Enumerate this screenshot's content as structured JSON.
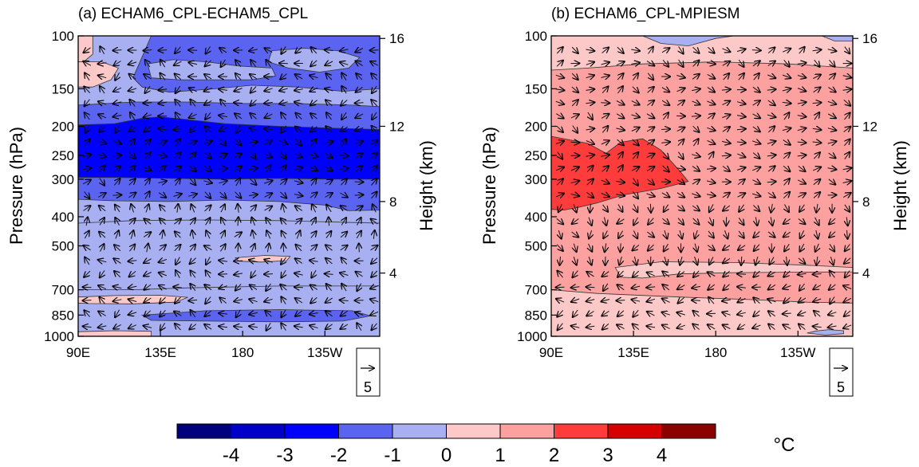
{
  "chart_data": [
    {
      "type": "heatmap",
      "title": "(a) ECHAM6_CPL-ECHAM5_CPL",
      "ylabel": "Pressure (hPa)",
      "y2label": "Height (km)",
      "x_ticks": [
        "90E",
        "135E",
        "180",
        "135W"
      ],
      "x_tick_degrees": [
        90,
        135,
        180,
        225
      ],
      "xlim_degrees": [
        90,
        255
      ],
      "y_ticks": [
        100,
        150,
        200,
        250,
        300,
        400,
        500,
        700,
        850,
        1000
      ],
      "y_scale": "log",
      "ylim": [
        1000,
        100
      ],
      "y2_ticks": [
        4,
        8,
        12,
        16
      ],
      "y2_tick_pressure": [
        616,
        356,
        200,
        102
      ],
      "reference_vector_label": "5",
      "regions": [
        {
          "name": "bg",
          "value": -0.5,
          "points": []
        },
        {
          "name": "top-left-warm",
          "value": 0.5,
          "points": [
            [
              90,
              100
            ],
            [
              98,
              100
            ],
            [
              98,
              115
            ],
            [
              93,
              122
            ],
            [
              90,
              122
            ]
          ]
        },
        {
          "name": "left-warm-140",
          "value": 0.5,
          "points": [
            [
              90,
              122
            ],
            [
              103,
              122
            ],
            [
              112,
              128
            ],
            [
              108,
              140
            ],
            [
              98,
              148
            ],
            [
              90,
              148
            ]
          ]
        },
        {
          "name": "blob-130",
          "value": -1.5,
          "points": [
            [
              130,
              100
            ],
            [
              255,
              100
            ],
            [
              255,
              150
            ],
            [
              235,
              153
            ],
            [
              210,
              148
            ],
            [
              185,
              146
            ],
            [
              165,
              150
            ],
            [
              140,
              154
            ],
            [
              125,
              148
            ],
            [
              120,
              138
            ]
          ]
        },
        {
          "name": "inner-top-right",
          "value": -0.5,
          "points": [
            [
              196,
              112
            ],
            [
              214,
              110
            ],
            [
              232,
              112
            ],
            [
              244,
              118
            ],
            [
              238,
              128
            ],
            [
              222,
              132
            ],
            [
              205,
              128
            ],
            [
              194,
              122
            ]
          ]
        },
        {
          "name": "light-upper",
          "value": -0.5,
          "points": [
            [
              128,
              124
            ],
            [
              142,
              120
            ],
            [
              160,
              122
            ],
            [
              178,
              126
            ],
            [
              196,
              128
            ],
            [
              198,
              136
            ],
            [
              185,
              140
            ],
            [
              165,
              140
            ],
            [
              145,
              140
            ],
            [
              130,
              138
            ]
          ]
        },
        {
          "name": "band-lower-upper",
          "value": -1.5,
          "points": [
            [
              90,
              170
            ],
            [
              120,
              166
            ],
            [
              150,
              166
            ],
            [
              180,
              168
            ],
            [
              210,
              168
            ],
            [
              240,
              170
            ],
            [
              255,
              172
            ],
            [
              255,
              380
            ],
            [
              238,
              382
            ],
            [
              225,
              366
            ],
            [
              200,
              356
            ],
            [
              170,
              352
            ],
            [
              140,
              356
            ],
            [
              110,
              354
            ],
            [
              90,
              350
            ]
          ]
        },
        {
          "name": "band-dark",
          "value": -2.5,
          "points": [
            [
              90,
              198
            ],
            [
              110,
              196
            ],
            [
              125,
              188
            ],
            [
              135,
              186
            ],
            [
              150,
              190
            ],
            [
              170,
              196
            ],
            [
              200,
              200
            ],
            [
              230,
              203
            ],
            [
              255,
              205
            ],
            [
              255,
              300
            ],
            [
              230,
              300
            ],
            [
              200,
              298
            ],
            [
              170,
              300
            ],
            [
              140,
              298
            ],
            [
              110,
              296
            ],
            [
              90,
              296
            ]
          ]
        },
        {
          "name": "mid-light",
          "value": -0.5,
          "points": [
            [
              90,
              420
            ],
            [
              120,
              412
            ],
            [
              160,
              410
            ],
            [
              200,
              412
            ],
            [
              240,
              418
            ],
            [
              255,
              420
            ],
            [
              255,
              680
            ],
            [
              200,
              680
            ],
            [
              150,
              690
            ],
            [
              120,
              700
            ],
            [
              90,
              700
            ]
          ]
        },
        {
          "name": "small-warm-560",
          "value": 0.5,
          "points": [
            [
              176,
              548
            ],
            [
              192,
              538
            ],
            [
              206,
              542
            ],
            [
              204,
              560
            ],
            [
              190,
              566
            ],
            [
              178,
              562
            ]
          ]
        },
        {
          "name": "lower-warm",
          "value": 0.5,
          "points": [
            [
              90,
              740
            ],
            [
              110,
              732
            ],
            [
              135,
              730
            ],
            [
              150,
              742
            ],
            [
              143,
              770
            ],
            [
              120,
              780
            ],
            [
              95,
              778
            ],
            [
              90,
              775
            ]
          ]
        },
        {
          "name": "lower-blob",
          "value": -1.5,
          "points": [
            [
              125,
              850
            ],
            [
              160,
              822
            ],
            [
              200,
              815
            ],
            [
              240,
              822
            ],
            [
              250,
              855
            ],
            [
              235,
              890
            ],
            [
              200,
              895
            ],
            [
              160,
              890
            ],
            [
              130,
              885
            ]
          ]
        },
        {
          "name": "bottom-warm",
          "value": 0.5,
          "points": [
            [
              90,
              965
            ],
            [
              110,
              958
            ],
            [
              130,
              962
            ],
            [
              130,
              1000
            ],
            [
              90,
              1000
            ]
          ]
        }
      ]
    },
    {
      "type": "heatmap",
      "title": "(b) ECHAM6_CPL-MPIESM",
      "ylabel": "Pressure (hPa)",
      "y2label": "Height (km)",
      "x_ticks": [
        "90E",
        "135E",
        "180",
        "135W"
      ],
      "x_tick_degrees": [
        90,
        135,
        180,
        225
      ],
      "xlim_degrees": [
        90,
        255
      ],
      "y_ticks": [
        100,
        150,
        200,
        250,
        300,
        400,
        500,
        700,
        850,
        1000
      ],
      "y_scale": "log",
      "ylim": [
        1000,
        100
      ],
      "y2_ticks": [
        4,
        8,
        12,
        16
      ],
      "y2_tick_pressure": [
        616,
        356,
        200,
        102
      ],
      "reference_vector_label": "5",
      "regions": [
        {
          "name": "bg",
          "value": 1.5,
          "points": []
        },
        {
          "name": "top-light",
          "value": 0.5,
          "points": [
            [
              90,
              100
            ],
            [
              255,
              100
            ],
            [
              255,
              128
            ],
            [
              220,
              124
            ],
            [
              180,
              122
            ],
            [
              140,
              124
            ],
            [
              110,
              128
            ],
            [
              90,
              130
            ]
          ]
        },
        {
          "name": "top-blue",
          "value": -0.5,
          "points": [
            [
              140,
              100
            ],
            [
              150,
              106
            ],
            [
              165,
              108
            ],
            [
              180,
              102
            ],
            [
              190,
              100
            ]
          ]
        },
        {
          "name": "top-blue-right",
          "value": -0.5,
          "points": [
            [
              238,
              100
            ],
            [
              255,
              100
            ],
            [
              255,
              104
            ],
            [
              245,
              104
            ]
          ]
        },
        {
          "name": "hot-blob",
          "value": 2.5,
          "points": [
            [
              90,
              216
            ],
            [
              97,
              220
            ],
            [
              110,
              228
            ],
            [
              120,
              246
            ],
            [
              128,
              226
            ],
            [
              140,
              220
            ],
            [
              150,
              240
            ],
            [
              160,
              280
            ],
            [
              165,
              305
            ],
            [
              150,
              322
            ],
            [
              130,
              338
            ],
            [
              115,
              360
            ],
            [
              105,
              372
            ],
            [
              97,
              380
            ],
            [
              90,
              378
            ]
          ]
        },
        {
          "name": "light-mid",
          "value": 0.5,
          "points": [
            [
              125,
              590
            ],
            [
              150,
              565
            ],
            [
              190,
              568
            ],
            [
              230,
              580
            ],
            [
              255,
              590
            ],
            [
              255,
              610
            ],
            [
              220,
              612
            ],
            [
              190,
              614
            ],
            [
              160,
              620
            ],
            [
              140,
              640
            ],
            [
              128,
              636
            ]
          ]
        },
        {
          "name": "left-bottom-light",
          "value": 0.5,
          "points": [
            [
              90,
              700
            ],
            [
              115,
              720
            ],
            [
              160,
              740
            ],
            [
              200,
              755
            ],
            [
              230,
              770
            ],
            [
              255,
              775
            ],
            [
              255,
              1000
            ],
            [
              90,
              1000
            ]
          ]
        },
        {
          "name": "bottom-blue",
          "value": -0.5,
          "points": [
            [
              235,
              960
            ],
            [
              242,
              950
            ],
            [
              250,
              958
            ],
            [
              250,
              980
            ],
            [
              240,
              990
            ],
            [
              230,
              975
            ]
          ]
        }
      ]
    },
    {
      "type": "colorbar",
      "labels": [
        "-4",
        "-3",
        "-2",
        "-1",
        "0",
        "1",
        "2",
        "3",
        "4"
      ],
      "levels": [
        -4,
        -3,
        -2,
        -1,
        0,
        1,
        2,
        3,
        4
      ],
      "colors": [
        "#00007f",
        "#0000c8",
        "#0000ff",
        "#5a64f0",
        "#a8b0f2",
        "#fdc8c8",
        "#fca0a0",
        "#ff3c3c",
        "#d70000",
        "#8b0000"
      ],
      "unit": "°C"
    }
  ]
}
